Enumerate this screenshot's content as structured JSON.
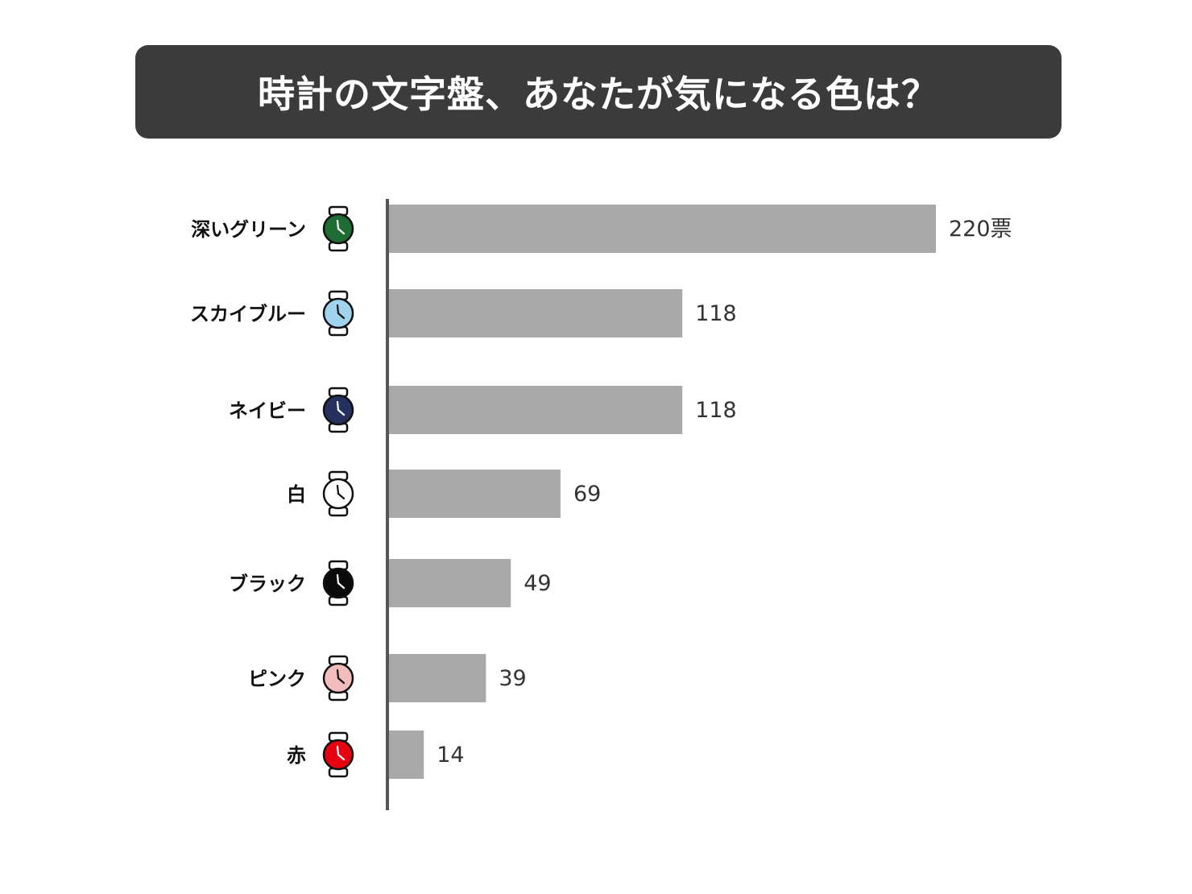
{
  "title": "時計の文字盤、あなたが気になる色は？",
  "colors": {
    "banner": "#3b3b3b",
    "bar": "#a9a9a9",
    "axis": "#555555"
  },
  "chart_data": {
    "type": "bar",
    "orientation": "horizontal",
    "title": "時計の文字盤、あなたが気になる色は？",
    "categories": [
      "深いグリーン",
      "スカイブルー",
      "ネイビー",
      "白",
      "ブラック",
      "ピンク",
      "赤"
    ],
    "values": [
      220,
      118,
      118,
      69,
      49,
      39,
      14
    ],
    "value_labels": [
      "220票",
      "118",
      "118",
      "69",
      "49",
      "39",
      "14"
    ],
    "unit": "票",
    "dial_colors": [
      "#1e6b33",
      "#9fd3ee",
      "#26305e",
      "#ffffff",
      "#0a0a0a",
      "#f2bcbc",
      "#e60012"
    ],
    "icons": [
      "watch-icon",
      "watch-icon",
      "watch-icon",
      "watch-icon",
      "watch-icon",
      "watch-icon",
      "watch-icon"
    ],
    "xlim": [
      0,
      220
    ],
    "grid": false,
    "legend": "none"
  }
}
